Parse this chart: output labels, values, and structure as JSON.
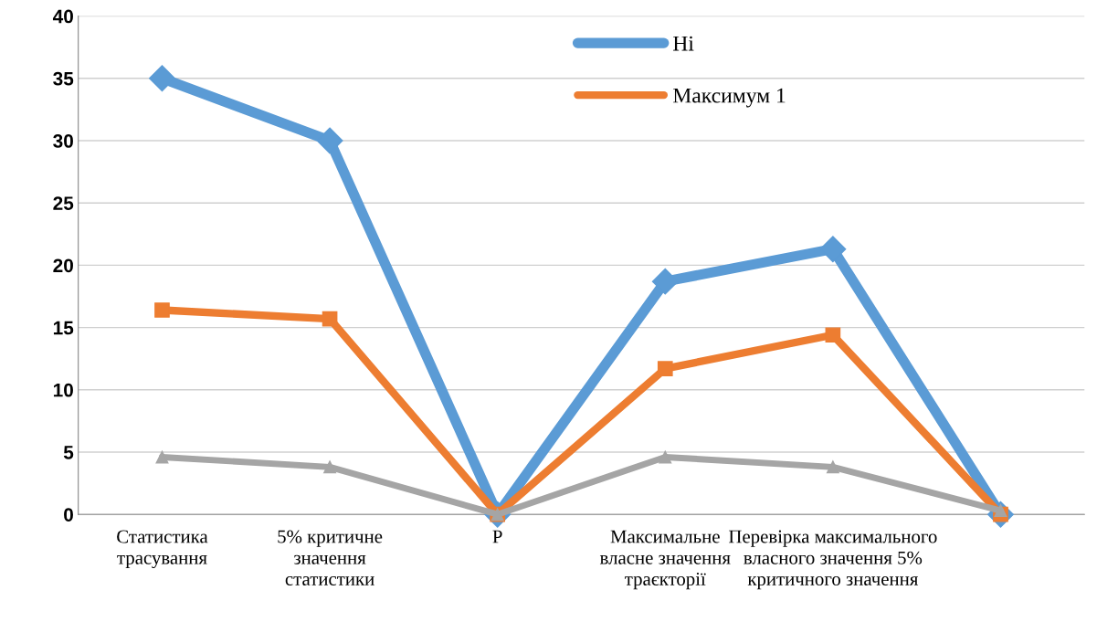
{
  "chart_data": {
    "type": "line",
    "categories": [
      "Статистика трасування",
      "5% критичне значення статистики",
      "P",
      "Максимальне власне значення траєкторії",
      "Перевірка максимального власного значення 5% критичного значення",
      null
    ],
    "series": [
      {
        "name": "Ні",
        "color": "#5b9bd5",
        "marker": "diamond",
        "values": [
          35,
          30,
          0,
          18.7,
          21.3,
          0
        ]
      },
      {
        "name": "Максимум 1",
        "color": "#ed7d31",
        "marker": "square",
        "values": [
          16.4,
          15.7,
          0,
          11.7,
          14.4,
          0
        ]
      },
      {
        "color": "#a5a5a5",
        "marker": "triangle",
        "values": [
          4.6,
          3.8,
          0,
          4.6,
          3.8,
          0.3
        ]
      }
    ],
    "ylim": [
      0,
      40
    ],
    "yticks": [
      0,
      5,
      10,
      15,
      20,
      25,
      30,
      35,
      40
    ],
    "grid": "y",
    "legend": "top"
  }
}
